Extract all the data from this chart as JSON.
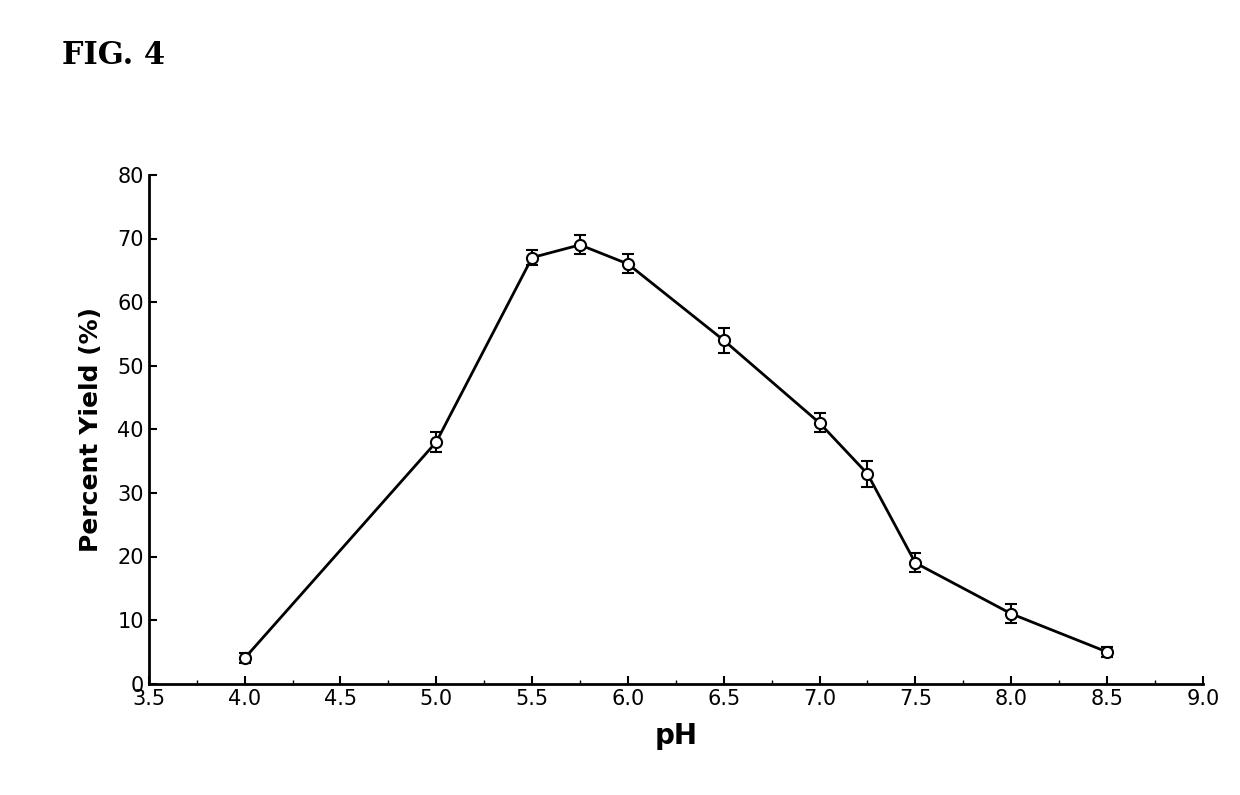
{
  "x": [
    4.0,
    5.0,
    5.5,
    5.75,
    6.0,
    6.5,
    7.0,
    7.25,
    7.5,
    8.0,
    8.5
  ],
  "y": [
    4,
    38,
    67,
    69,
    66,
    54,
    41,
    33,
    19,
    11,
    5
  ],
  "yerr": [
    0.8,
    1.5,
    1.2,
    1.5,
    1.5,
    2.0,
    1.5,
    2.0,
    1.5,
    1.5,
    0.8
  ],
  "xlabel": "pH",
  "ylabel": "Percent Yield (%)",
  "xlim": [
    3.5,
    9.0
  ],
  "ylim": [
    0,
    80
  ],
  "xticks": [
    3.5,
    4.0,
    4.5,
    5.0,
    5.5,
    6.0,
    6.5,
    7.0,
    7.5,
    8.0,
    8.5,
    9.0
  ],
  "yticks": [
    0,
    10,
    20,
    30,
    40,
    50,
    60,
    70,
    80
  ],
  "fig_title": "FIG. 4",
  "background_color": "#ffffff",
  "line_color": "#000000",
  "marker_color": "#ffffff",
  "marker_edge_color": "#000000"
}
